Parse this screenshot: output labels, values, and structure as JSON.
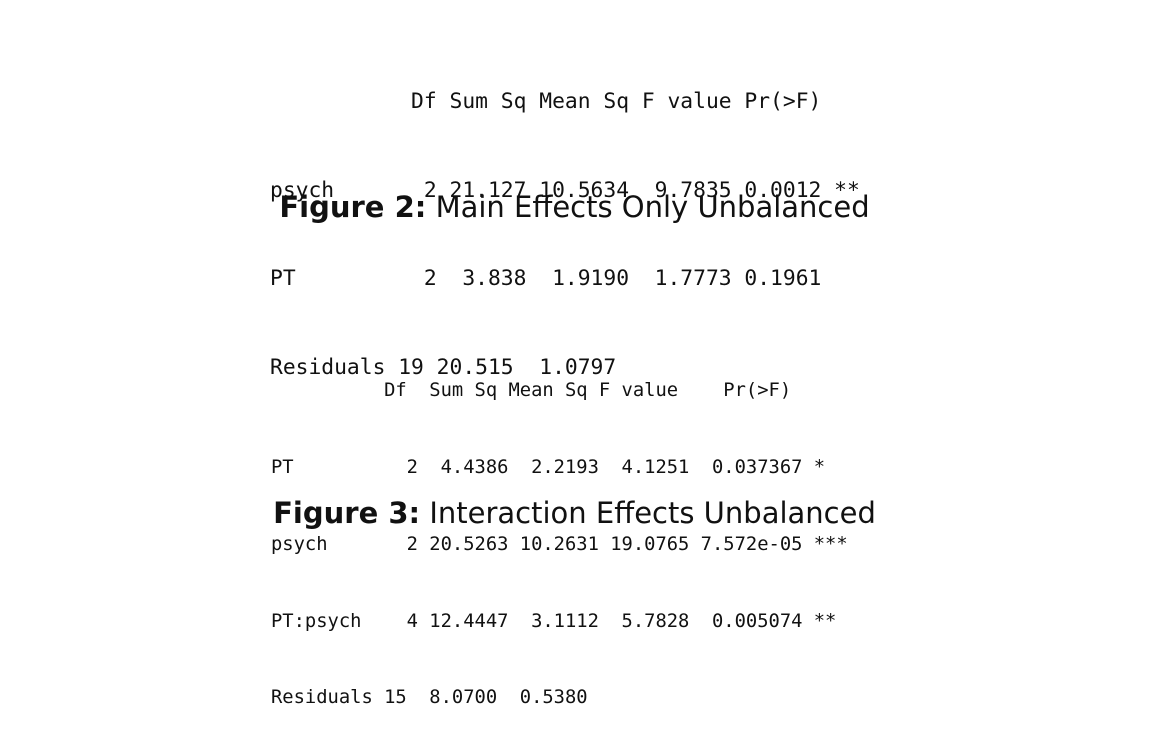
{
  "table_a": {
    "lines": [
      "           Df Sum Sq Mean Sq F value Pr(>F)   ",
      "psych       2 21.127 10.5634  9.7835 0.0012 **",
      "PT          2  3.838  1.9190  1.7773 0.1961   ",
      "Residuals 19 20.515  1.0797                 "
    ]
  },
  "caption_a": {
    "lead": "Figure 2:",
    "text": "Main Effects Only Unbalanced"
  },
  "table_b": {
    "lines": [
      "          Df  Sum Sq Mean Sq F value    Pr(>F)    ",
      "PT          2  4.4386  2.2193  4.1251  0.037367 *  ",
      "psych       2 20.5263 10.2631 19.0765 7.572e-05 ***",
      "PT:psych    4 12.4447  3.1112  5.7828  0.005074 ** ",
      "Residuals 15  8.0700  0.5380                      "
    ]
  },
  "caption_b": {
    "lead": "Figure 3:",
    "text": "Interaction Effects Unbalanced"
  }
}
